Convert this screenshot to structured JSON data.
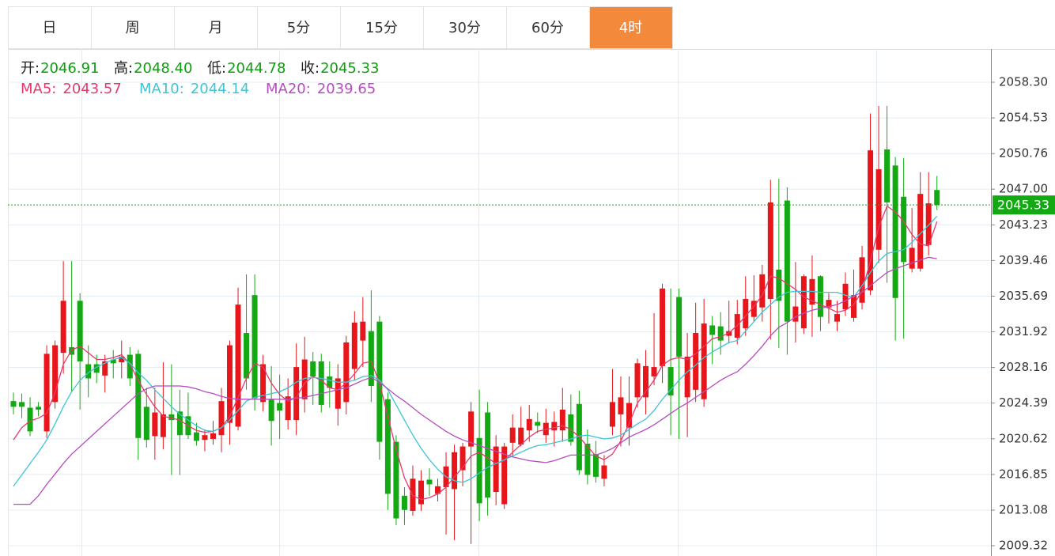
{
  "tabs": [
    "日",
    "周",
    "月",
    "5分",
    "15分",
    "30分",
    "60分",
    "4时"
  ],
  "active_tab": 7,
  "chart_data": {
    "type": "candlestick",
    "ohlc": {
      "labels": [
        "开:",
        "高:",
        "低:",
        "收:"
      ],
      "value_labels": [
        "2046.91",
        "2048.40",
        "2044.78",
        "2045.33"
      ]
    },
    "up_color": "#e8161a",
    "down_color": "#13a913",
    "ylim": [
      2008.23,
      2061.81
    ],
    "yticks": [
      {
        "value": 2058.3,
        "label": "2058.30"
      },
      2054.53,
      2050.76,
      {
        "value": 2047.0,
        "label": "2047.00"
      },
      2043.23,
      2039.46,
      2035.69,
      2031.92,
      2028.16,
      2024.39,
      2020.62,
      2016.85,
      2013.08,
      2009.32
    ],
    "grid": true,
    "open": [
      2024.6,
      2024.5,
      2023.9,
      2024.0,
      2021.4,
      2024.5,
      2029.7,
      2030.3,
      2035.2,
      2028.5,
      2028.5,
      2027.3,
      2029.0,
      2028.7,
      2029.5,
      2029.6,
      2024.0,
      2020.9,
      2020.8,
      2023.2,
      2023.5,
      2023.0,
      2021.3,
      2020.5,
      2020.6,
      2021.0,
      2022.3,
      2021.9,
      2031.8,
      2035.8,
      2024.5,
      2024.8,
      2024.4,
      2022.6,
      2022.6,
      2024.8,
      2028.8,
      2028.8,
      2027.2,
      2023.8,
      2024.5,
      2028.0,
      2031.0,
      2032.0,
      2033.0,
      2024.8,
      2020.3,
      2014.6,
      2013.0,
      2013.7,
      2016.3,
      2014.8,
      2015.5,
      2015.3,
      2017.3,
      2019.8,
      2020.7,
      2023.4,
      2015.0,
      2013.7,
      2020.2,
      2020.0,
      2021.5,
      2022.4,
      2021.0,
      2021.5,
      2021.5,
      2023.2,
      2024.3,
      2020.1,
      2019.0,
      2016.4,
      2021.9,
      2023.2,
      2021.8,
      2025.0,
      2025.0,
      2027.2,
      2028.3,
      2028.2,
      2035.6,
      2025.0,
      2025.8,
      2024.8,
      2032.6,
      2032.5,
      2031.5,
      2031.3,
      2032.3,
      2033.5,
      2034.5,
      2035.4,
      2038.5,
      2045.8,
      2033.0,
      2032.3,
      2034.8,
      2037.8,
      2034.5,
      2033.0,
      2034.3,
      2033.4,
      2035.0,
      2036.3,
      2040.6,
      2051.2,
      2049.5,
      2046.2,
      2038.6,
      2038.6,
      2041.1,
      2046.91
    ],
    "high": [
      2025.5,
      2025.4,
      2025.0,
      2024.5,
      2030.5,
      2031.0,
      2039.4,
      2039.4,
      2036.0,
      2030.5,
      2029.5,
      2029.5,
      2030.0,
      2031.0,
      2030.3,
      2030.0,
      2026.0,
      2026.0,
      2028.7,
      2028.5,
      2025.8,
      2025.5,
      2022.3,
      2021.6,
      2022.5,
      2026.0,
      2031.0,
      2036.6,
      2038.0,
      2038.0,
      2029.5,
      2028.3,
      2027.4,
      2027.0,
      2030.7,
      2031.4,
      2029.8,
      2029.6,
      2028.8,
      2028.5,
      2031.5,
      2034.1,
      2035.6,
      2036.3,
      2033.6,
      2025.5,
      2021.0,
      2015.5,
      2017.8,
      2017.3,
      2017.5,
      2016.4,
      2019.2,
      2020.0,
      2020.2,
      2024.5,
      2025.8,
      2024.5,
      2021.0,
      2020.2,
      2023.2,
      2024.0,
      2024.2,
      2023.4,
      2023.8,
      2023.5,
      2026.0,
      2025.3,
      2025.7,
      2021.6,
      2020.4,
      2018.9,
      2028.0,
      2027.2,
      2027.2,
      2029.1,
      2030.0,
      2033.9,
      2037.0,
      2036.5,
      2036.5,
      2031.8,
      2035.0,
      2035.4,
      2033.6,
      2034.0,
      2035.2,
      2035.3,
      2037.8,
      2037.9,
      2039.0,
      2048.0,
      2048.1,
      2047.2,
      2039.3,
      2038.0,
      2040.0,
      2037.9,
      2036.0,
      2035.2,
      2038.2,
      2038.5,
      2041.0,
      2055.0,
      2055.8,
      2055.8,
      2050.4,
      2050.3,
      2045.0,
      2048.8,
      2048.8,
      2048.4
    ],
    "low": [
      2023.2,
      2022.8,
      2020.9,
      2023.0,
      2020.7,
      2023.8,
      2027.5,
      2025.6,
      2023.7,
      2025.0,
      2026.5,
      2025.5,
      2027.0,
      2027.0,
      2026.2,
      2018.4,
      2019.7,
      2018.4,
      2019.5,
      2016.8,
      2016.8,
      2020.6,
      2019.9,
      2019.3,
      2020.0,
      2019.2,
      2020.0,
      2021.5,
      2025.8,
      2023.6,
      2023.5,
      2019.9,
      2020.6,
      2021.6,
      2021.0,
      2023.4,
      2024.2,
      2023.4,
      2023.9,
      2022.0,
      2023.2,
      2026.8,
      2028.2,
      2024.5,
      2018.4,
      2013.1,
      2011.5,
      2011.5,
      2012.5,
      2013.0,
      2014.6,
      2014.0,
      2010.5,
      2009.9,
      2015.6,
      2009.5,
      2011.9,
      2012.5,
      2013.6,
      2013.2,
      2018.7,
      2019.8,
      2020.3,
      2021.2,
      2020.2,
      2019.8,
      2020.3,
      2019.9,
      2016.8,
      2015.8,
      2016.0,
      2015.6,
      2021.0,
      2019.8,
      2019.9,
      2023.9,
      2023.2,
      2026.3,
      2026.5,
      2021.0,
      2020.6,
      2020.8,
      2024.5,
      2024.0,
      2028.5,
      2029.5,
      2030.7,
      2030.6,
      2031.5,
      2033.0,
      2033.0,
      2031.1,
      2030.2,
      2029.5,
      2030.8,
      2031.7,
      2031.4,
      2032.0,
      2032.8,
      2032.0,
      2033.6,
      2033.0,
      2034.3,
      2035.8,
      2039.2,
      2037.1,
      2031.0,
      2031.2,
      2038.2,
      2038.3,
      2040.0,
      2044.78
    ],
    "close": [
      2024.0,
      2024.0,
      2021.4,
      2023.7,
      2029.6,
      2030.5,
      2035.2,
      2029.5,
      2028.8,
      2027.0,
      2027.6,
      2028.8,
      2028.6,
      2029.3,
      2027.0,
      2020.7,
      2020.5,
      2023.4,
      2023.2,
      2022.6,
      2021.0,
      2021.0,
      2020.4,
      2021.0,
      2021.2,
      2024.6,
      2030.5,
      2034.8,
      2027.0,
      2024.9,
      2028.5,
      2022.5,
      2023.6,
      2025.1,
      2028.2,
      2029.0,
      2027.2,
      2024.2,
      2026.0,
      2027.0,
      2030.8,
      2032.9,
      2033.0,
      2026.2,
      2020.3,
      2014.8,
      2012.2,
      2013.1,
      2016.4,
      2016.2,
      2015.8,
      2015.6,
      2017.7,
      2019.2,
      2019.8,
      2023.5,
      2013.8,
      2014.4,
      2019.8,
      2019.8,
      2021.8,
      2021.8,
      2022.7,
      2022.0,
      2022.3,
      2022.4,
      2023.7,
      2020.3,
      2017.3,
      2016.8,
      2016.6,
      2017.8,
      2024.5,
      2025.0,
      2024.4,
      2028.6,
      2028.3,
      2028.2,
      2036.5,
      2025.2,
      2029.3,
      2029.3,
      2031.8,
      2032.8,
      2031.6,
      2031.0,
      2032.0,
      2033.8,
      2035.4,
      2035.2,
      2038.0,
      2045.6,
      2035.2,
      2033.0,
      2034.6,
      2037.8,
      2037.5,
      2033.5,
      2035.3,
      2033.8,
      2037.0,
      2035.8,
      2039.8,
      2051.1,
      2049.1,
      2045.6,
      2035.5,
      2039.3,
      2040.8,
      2046.5,
      2045.5,
      2045.33
    ],
    "series": [
      {
        "name": "MA5:",
        "color": "#e7386c",
        "values": [
          2020.5,
          2021.8,
          2022.5,
          2022.8,
          2023.3,
          2025.5,
          2028.5,
          2030.0,
          2030.4,
          2029.7,
          2029.0,
          2029.0,
          2029.2,
          2029.5,
          2028.5,
          2026.8,
          2025.3,
          2024.0,
          2023.0,
          2022.8,
          2022.6,
          2022.0,
          2021.5,
          2021.3,
          2021.4,
          2021.8,
          2023.0,
          2025.0,
          2027.0,
          2028.6,
          2028.2,
          2026.5,
          2025.3,
          2024.6,
          2025.0,
          2026.5,
          2027.2,
          2026.8,
          2026.0,
          2025.8,
          2026.5,
          2027.5,
          2028.6,
          2028.8,
          2026.5,
          2023.0,
          2019.5,
          2016.5,
          2014.6,
          2014.2,
          2014.4,
          2014.8,
          2015.5,
          2016.6,
          2017.6,
          2018.8,
          2019.2,
          2018.6,
          2018.0,
          2018.3,
          2019.2,
          2020.0,
          2020.8,
          2021.4,
          2021.6,
          2021.8,
          2022.0,
          2021.6,
          2020.8,
          2019.8,
          2018.8,
          2018.4,
          2019.0,
          2020.4,
          2022.2,
          2024.4,
          2025.6,
          2026.8,
          2028.4,
          2029.0,
          2029.2,
          2029.0,
          2029.6,
          2030.4,
          2031.2,
          2031.4,
          2031.8,
          2032.6,
          2033.6,
          2034.6,
          2035.8,
          2037.8,
          2037.6,
          2037.0,
          2036.4,
          2035.6,
          2035.2,
          2034.8,
          2034.4,
          2034.0,
          2034.2,
          2034.8,
          2036.2,
          2039.4,
          2043.0,
          2045.2,
          2044.6,
          2043.6,
          2042.2,
          2041.2,
          2041.0,
          2043.57
        ]
      },
      {
        "name": "MA10:",
        "color": "#3ec4d6",
        "values": [
          2015.6,
          2016.8,
          2018.0,
          2019.2,
          2020.5,
          2022.2,
          2024.0,
          2025.6,
          2026.8,
          2027.6,
          2028.2,
          2028.6,
          2029.0,
          2029.2,
          2028.6,
          2027.6,
          2026.8,
          2025.8,
          2024.9,
          2024.0,
          2023.2,
          2022.6,
          2022.0,
          2021.5,
          2021.4,
          2021.8,
          2022.6,
          2023.6,
          2024.6,
          2025.0,
          2025.2,
          2025.4,
          2025.6,
          2026.0,
          2026.6,
          2027.0,
          2027.1,
          2027.0,
          2026.8,
          2026.6,
          2026.6,
          2026.8,
          2027.2,
          2027.3,
          2026.8,
          2025.8,
          2024.2,
          2022.6,
          2021.0,
          2019.6,
          2018.4,
          2017.4,
          2016.6,
          2016.2,
          2016.0,
          2016.4,
          2017.0,
          2017.6,
          2018.0,
          2018.4,
          2018.8,
          2019.2,
          2019.6,
          2019.9,
          2020.0,
          2020.2,
          2020.4,
          2020.6,
          2020.9,
          2021.0,
          2020.8,
          2020.6,
          2020.7,
          2021.0,
          2021.6,
          2022.2,
          2022.7,
          2023.6,
          2024.8,
          2025.8,
          2026.8,
          2027.7,
          2028.4,
          2029.2,
          2029.8,
          2030.3,
          2030.8,
          2031.0,
          2032.0,
          2033.0,
          2034.0,
          2034.8,
          2035.6,
          2036.1,
          2036.2,
          2036.2,
          2036.2,
          2036.1,
          2036.1,
          2036.1,
          2035.8,
          2035.6,
          2036.8,
          2038.2,
          2039.4,
          2040.2,
          2040.4,
          2040.6,
          2041.4,
          2042.3,
          2043.2,
          2044.14
        ]
      },
      {
        "name": "MA20:",
        "color": "#b54dbf",
        "values": [
          2013.7,
          2013.7,
          2013.7,
          2014.6,
          2015.8,
          2016.9,
          2018.0,
          2019.0,
          2019.8,
          2020.6,
          2021.4,
          2022.2,
          2023.0,
          2023.8,
          2024.6,
          2025.4,
          2025.9,
          2026.2,
          2026.2,
          2026.2,
          2026.2,
          2026.1,
          2025.9,
          2025.6,
          2025.4,
          2025.1,
          2024.9,
          2024.8,
          2024.8,
          2024.8,
          2024.8,
          2024.8,
          2024.8,
          2024.8,
          2024.9,
          2025.0,
          2025.2,
          2025.4,
          2025.6,
          2025.8,
          2026.0,
          2026.4,
          2026.8,
          2027.1,
          2026.6,
          2025.9,
          2025.2,
          2024.6,
          2023.9,
          2023.2,
          2022.6,
          2022.0,
          2021.4,
          2020.9,
          2020.5,
          2020.2,
          2019.9,
          2019.6,
          2019.3,
          2019.0,
          2018.7,
          2018.5,
          2018.3,
          2018.2,
          2018.1,
          2018.3,
          2018.6,
          2018.9,
          2018.9,
          2018.9,
          2018.9,
          2019.2,
          2019.6,
          2020.2,
          2020.8,
          2021.2,
          2021.6,
          2022.1,
          2022.7,
          2023.3,
          2023.9,
          2024.4,
          2025.0,
          2025.6,
          2026.2,
          2026.8,
          2027.3,
          2027.7,
          2028.5,
          2029.4,
          2030.4,
          2031.5,
          2032.4,
          2032.9,
          2033.5,
          2033.9,
          2034.2,
          2034.4,
          2034.6,
          2034.8,
          2035.2,
          2035.7,
          2036.1,
          2036.8,
          2037.5,
          2038.2,
          2038.6,
          2038.9,
          2039.2,
          2039.5,
          2039.8,
          2039.65
        ]
      }
    ]
  }
}
